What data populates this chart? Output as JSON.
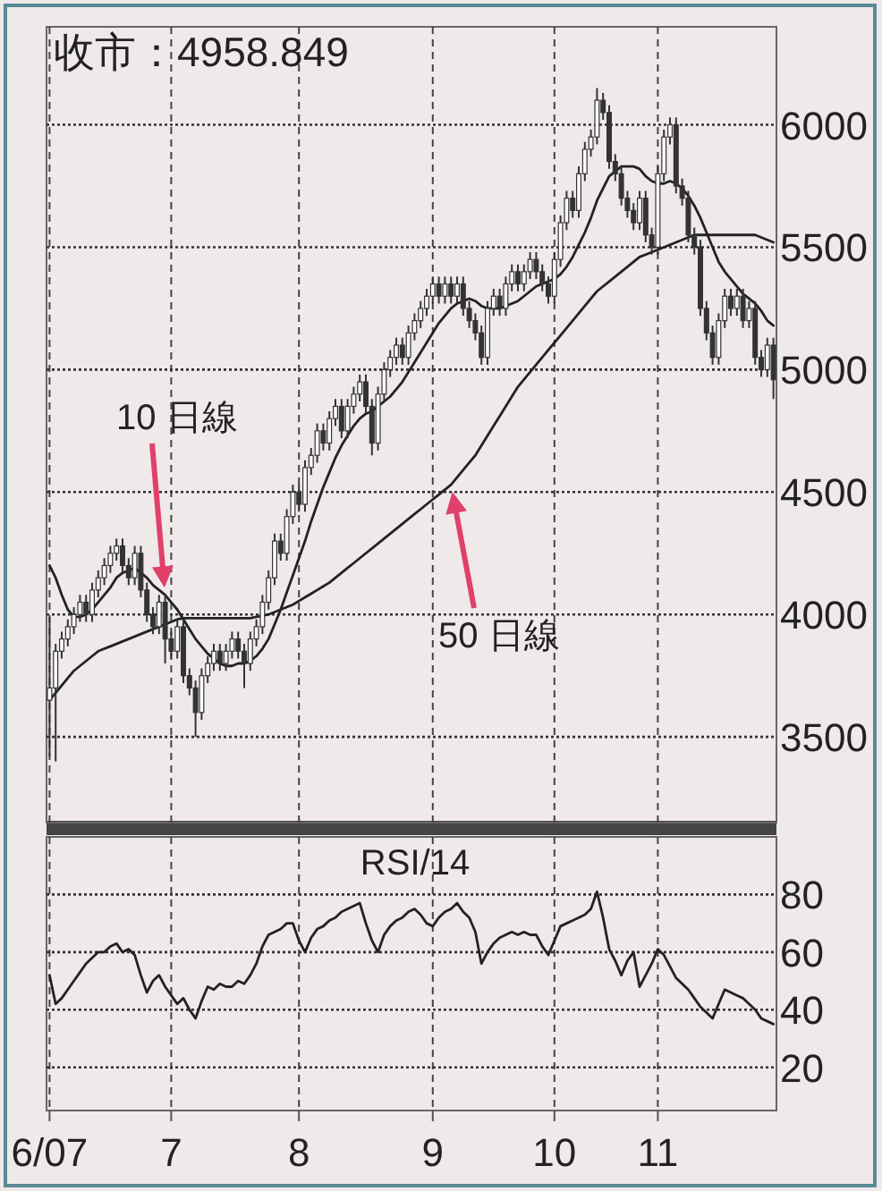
{
  "chart_data": [
    {
      "type": "candlestick",
      "title": "收市：4958.849",
      "color": "#333333",
      "grid": true,
      "tick_labels": "y",
      "categories": [
        null,
        null,
        null,
        null,
        null,
        null,
        null,
        null,
        null,
        null,
        null,
        null,
        null,
        null,
        null,
        null,
        null,
        null,
        null,
        null,
        null,
        null,
        null,
        null,
        null,
        null,
        null,
        null,
        null,
        null,
        null,
        null,
        null,
        null,
        null,
        null,
        null,
        null,
        null,
        null,
        null,
        null,
        null,
        null,
        null,
        null,
        null,
        null,
        null,
        null,
        null,
        null,
        null,
        null,
        null,
        null,
        null,
        null,
        null,
        null,
        null,
        null,
        null,
        null,
        null,
        null,
        null,
        null,
        null,
        null,
        null,
        null,
        null,
        null,
        null,
        null,
        null,
        null,
        null,
        null,
        null,
        null,
        null,
        null,
        null,
        null,
        null,
        null,
        null,
        null,
        null,
        null,
        null,
        null,
        null,
        null,
        null,
        null,
        null,
        null,
        null,
        null,
        null,
        null,
        null,
        null,
        null,
        null,
        null,
        null,
        null,
        null,
        null,
        null,
        null,
        null,
        null,
        null,
        null,
        null
      ],
      "ylim": [
        3150,
        6400
      ],
      "yticks": [
        3500,
        4000,
        4500,
        5000,
        5500,
        6000
      ],
      "ohlc": [
        [
          3650,
          3990,
          3420,
          3700
        ],
        [
          3700,
          3880,
          3400,
          3850
        ],
        [
          3850,
          3930,
          3820,
          3900
        ],
        [
          3900,
          3980,
          3870,
          3950
        ],
        [
          3950,
          4030,
          3920,
          4000
        ],
        [
          4000,
          4080,
          3970,
          4050
        ],
        [
          4050,
          4080,
          3970,
          4000
        ],
        [
          4000,
          4130,
          3970,
          4100
        ],
        [
          4100,
          4180,
          4070,
          4150
        ],
        [
          4150,
          4230,
          4120,
          4200
        ],
        [
          4200,
          4280,
          4170,
          4250
        ],
        [
          4250,
          4310,
          4220,
          4280
        ],
        [
          4280,
          4310,
          4170,
          4200
        ],
        [
          4200,
          4230,
          4120,
          4150
        ],
        [
          4150,
          4280,
          4120,
          4250
        ],
        [
          4250,
          4280,
          4070,
          4100
        ],
        [
          4100,
          4130,
          3970,
          4000
        ],
        [
          4000,
          4030,
          3920,
          3950
        ],
        [
          3950,
          4080,
          3920,
          4050
        ],
        [
          4050,
          4080,
          3800,
          3900
        ],
        [
          3900,
          3930,
          3820,
          3850
        ],
        [
          3850,
          3980,
          3820,
          3950
        ],
        [
          3950,
          3980,
          3720,
          3750
        ],
        [
          3750,
          3780,
          3670,
          3700
        ],
        [
          3700,
          3730,
          3500,
          3600
        ],
        [
          3600,
          3780,
          3570,
          3750
        ],
        [
          3750,
          3830,
          3720,
          3800
        ],
        [
          3800,
          3880,
          3770,
          3850
        ],
        [
          3850,
          3880,
          3770,
          3800
        ],
        [
          3800,
          3880,
          3770,
          3850
        ],
        [
          3850,
          3930,
          3820,
          3900
        ],
        [
          3900,
          3930,
          3820,
          3850
        ],
        [
          3850,
          3880,
          3700,
          3800
        ],
        [
          3800,
          3930,
          3770,
          3900
        ],
        [
          3900,
          3980,
          3870,
          3950
        ],
        [
          3950,
          4080,
          3920,
          4050
        ],
        [
          4050,
          4180,
          4020,
          4150
        ],
        [
          4150,
          4330,
          4120,
          4300
        ],
        [
          4300,
          4330,
          4220,
          4250
        ],
        [
          4250,
          4430,
          4220,
          4400
        ],
        [
          4400,
          4530,
          4370,
          4500
        ],
        [
          4500,
          4530,
          4420,
          4450
        ],
        [
          4450,
          4630,
          4420,
          4600
        ],
        [
          4600,
          4680,
          4570,
          4650
        ],
        [
          4650,
          4780,
          4620,
          4750
        ],
        [
          4750,
          4780,
          4670,
          4700
        ],
        [
          4700,
          4830,
          4670,
          4800
        ],
        [
          4800,
          4880,
          4770,
          4850
        ],
        [
          4850,
          4880,
          4720,
          4750
        ],
        [
          4750,
          4880,
          4720,
          4850
        ],
        [
          4850,
          4930,
          4820,
          4900
        ],
        [
          4900,
          4980,
          4870,
          4950
        ],
        [
          4950,
          4980,
          4820,
          4850
        ],
        [
          4850,
          4880,
          4650,
          4700
        ],
        [
          4700,
          4930,
          4670,
          4900
        ],
        [
          4900,
          5030,
          4870,
          5000
        ],
        [
          5000,
          5080,
          4970,
          5050
        ],
        [
          5050,
          5130,
          5020,
          5100
        ],
        [
          5100,
          5130,
          5020,
          5050
        ],
        [
          5050,
          5180,
          5020,
          5150
        ],
        [
          5150,
          5230,
          5120,
          5200
        ],
        [
          5200,
          5280,
          5170,
          5250
        ],
        [
          5250,
          5330,
          5220,
          5300
        ],
        [
          5300,
          5380,
          5270,
          5350
        ],
        [
          5350,
          5380,
          5270,
          5300
        ],
        [
          5300,
          5380,
          5270,
          5350
        ],
        [
          5350,
          5380,
          5270,
          5300
        ],
        [
          5300,
          5380,
          5270,
          5350
        ],
        [
          5350,
          5380,
          5220,
          5250
        ],
        [
          5250,
          5280,
          5170,
          5200
        ],
        [
          5200,
          5230,
          5120,
          5150
        ],
        [
          5150,
          5180,
          5020,
          5050
        ],
        [
          5050,
          5280,
          5020,
          5250
        ],
        [
          5250,
          5330,
          5220,
          5300
        ],
        [
          5300,
          5330,
          5220,
          5250
        ],
        [
          5250,
          5380,
          5220,
          5350
        ],
        [
          5350,
          5430,
          5320,
          5400
        ],
        [
          5400,
          5430,
          5320,
          5350
        ],
        [
          5350,
          5430,
          5320,
          5400
        ],
        [
          5400,
          5480,
          5370,
          5450
        ],
        [
          5450,
          5480,
          5370,
          5400
        ],
        [
          5400,
          5430,
          5320,
          5350
        ],
        [
          5350,
          5380,
          5270,
          5300
        ],
        [
          5300,
          5480,
          5270,
          5450
        ],
        [
          5450,
          5630,
          5420,
          5600
        ],
        [
          5600,
          5730,
          5570,
          5700
        ],
        [
          5700,
          5730,
          5620,
          5650
        ],
        [
          5650,
          5830,
          5620,
          5800
        ],
        [
          5800,
          5930,
          5770,
          5900
        ],
        [
          5900,
          5980,
          5870,
          5950
        ],
        [
          5950,
          6150,
          5920,
          6100
        ],
        [
          6100,
          6130,
          6020,
          6050
        ],
        [
          6050,
          6080,
          5820,
          5850
        ],
        [
          5850,
          5880,
          5770,
          5800
        ],
        [
          5800,
          5830,
          5670,
          5700
        ],
        [
          5700,
          5730,
          5620,
          5650
        ],
        [
          5650,
          5680,
          5570,
          5600
        ],
        [
          5600,
          5730,
          5570,
          5700
        ],
        [
          5700,
          5730,
          5520,
          5550
        ],
        [
          5550,
          5580,
          5470,
          5500
        ],
        [
          5500,
          5830,
          5470,
          5800
        ],
        [
          5800,
          5980,
          5770,
          5950
        ],
        [
          5950,
          6030,
          5920,
          6000
        ],
        [
          6000,
          6030,
          5720,
          5750
        ],
        [
          5750,
          5780,
          5670,
          5700
        ],
        [
          5700,
          5730,
          5520,
          5550
        ],
        [
          5550,
          5580,
          5470,
          5500
        ],
        [
          5500,
          5530,
          5220,
          5250
        ],
        [
          5250,
          5280,
          5120,
          5150
        ],
        [
          5150,
          5180,
          5020,
          5050
        ],
        [
          5050,
          5230,
          5020,
          5200
        ],
        [
          5200,
          5330,
          5170,
          5300
        ],
        [
          5300,
          5330,
          5220,
          5250
        ],
        [
          5250,
          5330,
          5220,
          5300
        ],
        [
          5300,
          5330,
          5170,
          5200
        ],
        [
          5200,
          5280,
          5170,
          5250
        ],
        [
          5250,
          5280,
          5020,
          5050
        ],
        [
          5050,
          5080,
          4970,
          5000
        ],
        [
          5000,
          5130,
          4970,
          5100
        ],
        [
          5100,
          5130,
          4880,
          4958.849
        ]
      ],
      "series": [
        {
          "name": "10 日線",
          "type": "line",
          "color": "#222222",
          "values": [
            4200,
            4150,
            4080,
            4020,
            3990,
            3990,
            4000,
            4020,
            4050,
            4080,
            4110,
            4150,
            4170,
            4180,
            4190,
            4170,
            4150,
            4120,
            4100,
            4080,
            4050,
            4020,
            3980,
            3940,
            3900,
            3870,
            3840,
            3820,
            3800,
            3790,
            3790,
            3800,
            3800,
            3810,
            3830,
            3860,
            3900,
            3960,
            4020,
            4090,
            4160,
            4230,
            4300,
            4380,
            4450,
            4520,
            4580,
            4640,
            4690,
            4730,
            4770,
            4800,
            4820,
            4830,
            4850,
            4870,
            4890,
            4920,
            4950,
            4990,
            5030,
            5070,
            5110,
            5150,
            5190,
            5220,
            5250,
            5270,
            5280,
            5290,
            5280,
            5260,
            5250,
            5250,
            5250,
            5260,
            5270,
            5280,
            5300,
            5320,
            5340,
            5350,
            5360,
            5370,
            5390,
            5420,
            5460,
            5510,
            5560,
            5620,
            5690,
            5740,
            5790,
            5810,
            5830,
            5830,
            5830,
            5820,
            5790,
            5770,
            5760,
            5760,
            5770,
            5760,
            5740,
            5710,
            5670,
            5620,
            5560,
            5500,
            5440,
            5400,
            5370,
            5340,
            5310,
            5290,
            5270,
            5240,
            5200,
            5180
          ]
        },
        {
          "name": "50 日線",
          "type": "line",
          "color": "#222222",
          "values": [
            3650,
            3680,
            3710,
            3740,
            3770,
            3790,
            3810,
            3830,
            3850,
            3860,
            3870,
            3880,
            3890,
            3900,
            3910,
            3920,
            3930,
            3940,
            3950,
            3960,
            3970,
            3980,
            3985,
            3985,
            3985,
            3985,
            3985,
            3985,
            3985,
            3985,
            3985,
            3985,
            3985,
            3985,
            3990,
            3995,
            4000,
            4010,
            4020,
            4030,
            4040,
            4055,
            4070,
            4085,
            4100,
            4115,
            4130,
            4150,
            4170,
            4190,
            4210,
            4230,
            4250,
            4270,
            4290,
            4310,
            4330,
            4350,
            4370,
            4390,
            4410,
            4430,
            4450,
            4470,
            4490,
            4510,
            4530,
            4560,
            4590,
            4620,
            4650,
            4690,
            4730,
            4770,
            4810,
            4850,
            4890,
            4930,
            4960,
            4990,
            5020,
            5050,
            5080,
            5110,
            5140,
            5170,
            5200,
            5230,
            5260,
            5290,
            5320,
            5340,
            5360,
            5380,
            5400,
            5420,
            5440,
            5460,
            5470,
            5480,
            5490,
            5500,
            5510,
            5520,
            5530,
            5540,
            5550,
            5550,
            5550,
            5550,
            5550,
            5550,
            5550,
            5550,
            5550,
            5550,
            5550,
            5540,
            5530,
            5520
          ]
        }
      ]
    },
    {
      "type": "line",
      "title": "RSI/14",
      "color": "#222222",
      "grid": true,
      "categories": [
        "6/07",
        null,
        null,
        null,
        null,
        null,
        null,
        null,
        null,
        null,
        null,
        null,
        null,
        null,
        null,
        null,
        null,
        null,
        null,
        null,
        "7",
        null,
        null,
        null,
        null,
        null,
        null,
        null,
        null,
        null,
        null,
        null,
        null,
        null,
        null,
        null,
        null,
        null,
        null,
        null,
        null,
        "8",
        null,
        null,
        null,
        null,
        null,
        null,
        null,
        null,
        null,
        null,
        null,
        null,
        null,
        null,
        null,
        null,
        null,
        null,
        null,
        null,
        null,
        "9",
        null,
        null,
        null,
        null,
        null,
        null,
        null,
        null,
        null,
        null,
        null,
        null,
        null,
        null,
        null,
        null,
        null,
        null,
        null,
        "10",
        null,
        null,
        null,
        null,
        null,
        null,
        null,
        null,
        null,
        null,
        null,
        null,
        null,
        null,
        null,
        null,
        "11",
        null,
        null,
        null,
        null,
        null,
        null,
        null,
        null,
        null,
        null,
        null,
        null,
        null,
        null,
        null,
        null,
        null,
        null,
        null
      ],
      "ylim": [
        5,
        100
      ],
      "yticks": [
        20,
        40,
        60,
        80
      ],
      "values": [
        52,
        42,
        44,
        47,
        50,
        53,
        56,
        58,
        60,
        60,
        62,
        63,
        60,
        61,
        59,
        52,
        46,
        50,
        52,
        48,
        45,
        42,
        44,
        40,
        37,
        43,
        48,
        47,
        49,
        48,
        48,
        50,
        49,
        52,
        56,
        62,
        66,
        67,
        68,
        70,
        70,
        64,
        60,
        65,
        68,
        69,
        71,
        72,
        74,
        75,
        76,
        77,
        70,
        64,
        60,
        66,
        69,
        71,
        72,
        74,
        75,
        73,
        70,
        69,
        72,
        74,
        75,
        77,
        74,
        72,
        67,
        56,
        60,
        63,
        65,
        66,
        67,
        66,
        67,
        66,
        66,
        62,
        59,
        64,
        69,
        70,
        71,
        72,
        73,
        75,
        81,
        72,
        61,
        57,
        52,
        57,
        60,
        48,
        52,
        56,
        61,
        59,
        55,
        51,
        49,
        47,
        44,
        41,
        39,
        37,
        42,
        47,
        46,
        45,
        44,
        42,
        40,
        37,
        36,
        35
      ]
    }
  ]
}
